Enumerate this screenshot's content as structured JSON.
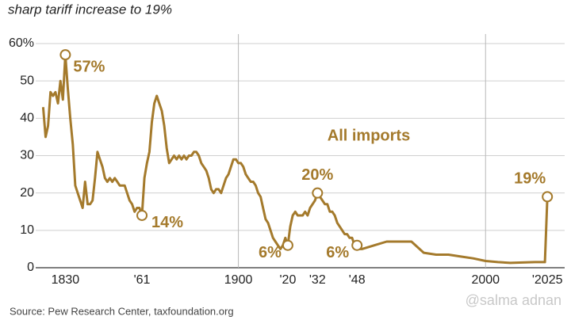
{
  "chart_data": {
    "type": "line",
    "subtitle": "sharp tariff increase to 19%",
    "source": "Source: Pew Research Center, taxfoundation.org",
    "watermark": "@salma adnan",
    "xlim": [
      1818,
      2032
    ],
    "ylim": [
      0,
      60
    ],
    "yticks": [
      0,
      10,
      20,
      30,
      40,
      50,
      {
        "value": 60,
        "label": "60%"
      }
    ],
    "xticks": [
      1830,
      {
        "value": 1861,
        "label": "'61"
      },
      1900,
      {
        "value": 1920,
        "label": "'20"
      },
      {
        "value": 1932,
        "label": "'32"
      },
      {
        "value": 1948,
        "label": "'48"
      },
      2000,
      {
        "value": 2025,
        "label": "'2025"
      }
    ],
    "grid": true,
    "x_gridlines": [
      1900,
      2000
    ],
    "series": [
      {
        "name": "All imports",
        "color": "#a47a2c",
        "x": [
          1821,
          1822,
          1823,
          1824,
          1825,
          1826,
          1827,
          1828,
          1829,
          1830,
          1831,
          1832,
          1833,
          1834,
          1835,
          1836,
          1837,
          1838,
          1839,
          1840,
          1841,
          1842,
          1843,
          1844,
          1845,
          1846,
          1847,
          1848,
          1849,
          1850,
          1851,
          1852,
          1853,
          1854,
          1855,
          1856,
          1857,
          1858,
          1859,
          1860,
          1861,
          1862,
          1863,
          1864,
          1865,
          1866,
          1867,
          1868,
          1869,
          1870,
          1871,
          1872,
          1873,
          1874,
          1875,
          1876,
          1877,
          1878,
          1879,
          1880,
          1881,
          1882,
          1883,
          1884,
          1885,
          1886,
          1887,
          1888,
          1889,
          1890,
          1891,
          1892,
          1893,
          1894,
          1895,
          1896,
          1897,
          1898,
          1899,
          1900,
          1901,
          1902,
          1903,
          1904,
          1905,
          1906,
          1907,
          1908,
          1909,
          1910,
          1911,
          1912,
          1913,
          1914,
          1915,
          1916,
          1917,
          1918,
          1919,
          1920,
          1921,
          1922,
          1923,
          1924,
          1925,
          1926,
          1927,
          1928,
          1929,
          1930,
          1931,
          1932,
          1933,
          1934,
          1935,
          1936,
          1937,
          1938,
          1939,
          1940,
          1941,
          1942,
          1943,
          1944,
          1945,
          1946,
          1947,
          1948,
          1949,
          1950,
          1955,
          1960,
          1965,
          1970,
          1975,
          1980,
          1985,
          1990,
          1995,
          2000,
          2005,
          2010,
          2015,
          2020,
          2024,
          2025
        ],
        "values": [
          43,
          35,
          38,
          47,
          46,
          47,
          44,
          50,
          45,
          57,
          48,
          40,
          33,
          22,
          20,
          18,
          16,
          23,
          17,
          17,
          18,
          24,
          31,
          29,
          27,
          24,
          23,
          24,
          23,
          24,
          23,
          22,
          22,
          22,
          20,
          18,
          17,
          15,
          16,
          16,
          14,
          24,
          28,
          31,
          39,
          44,
          46,
          44,
          42,
          38,
          32,
          28,
          29,
          30,
          29,
          30,
          29,
          30,
          29,
          30,
          30,
          31,
          31,
          30,
          28,
          27,
          26,
          24,
          21,
          20,
          21,
          21,
          20,
          22,
          24,
          25,
          27,
          29,
          29,
          28,
          28,
          27,
          25,
          24,
          23,
          23,
          22,
          20,
          19,
          16,
          13,
          12,
          10,
          8,
          7,
          6,
          5,
          6,
          8,
          6,
          11,
          14,
          15,
          14,
          14,
          14,
          15,
          14,
          16,
          17,
          18,
          20,
          19,
          18,
          17,
          17,
          15,
          15,
          14,
          12,
          11,
          10,
          9,
          9,
          8,
          8,
          6,
          6,
          5,
          5,
          6,
          7,
          7,
          7,
          4,
          3.5,
          3.5,
          3,
          2.5,
          1.8,
          1.5,
          1.3,
          1.4,
          1.5,
          1.5,
          19
        ]
      }
    ],
    "annotations": [
      {
        "text": "57%",
        "x": 1830,
        "y": 57
      },
      {
        "text": "14%",
        "x": 1861,
        "y": 14
      },
      {
        "text": "6%",
        "x": 1920,
        "y": 6
      },
      {
        "text": "20%",
        "x": 1932,
        "y": 20
      },
      {
        "text": "6%",
        "x": 1948,
        "y": 6
      },
      {
        "text": "19%",
        "x": 2025,
        "y": 19
      }
    ]
  }
}
